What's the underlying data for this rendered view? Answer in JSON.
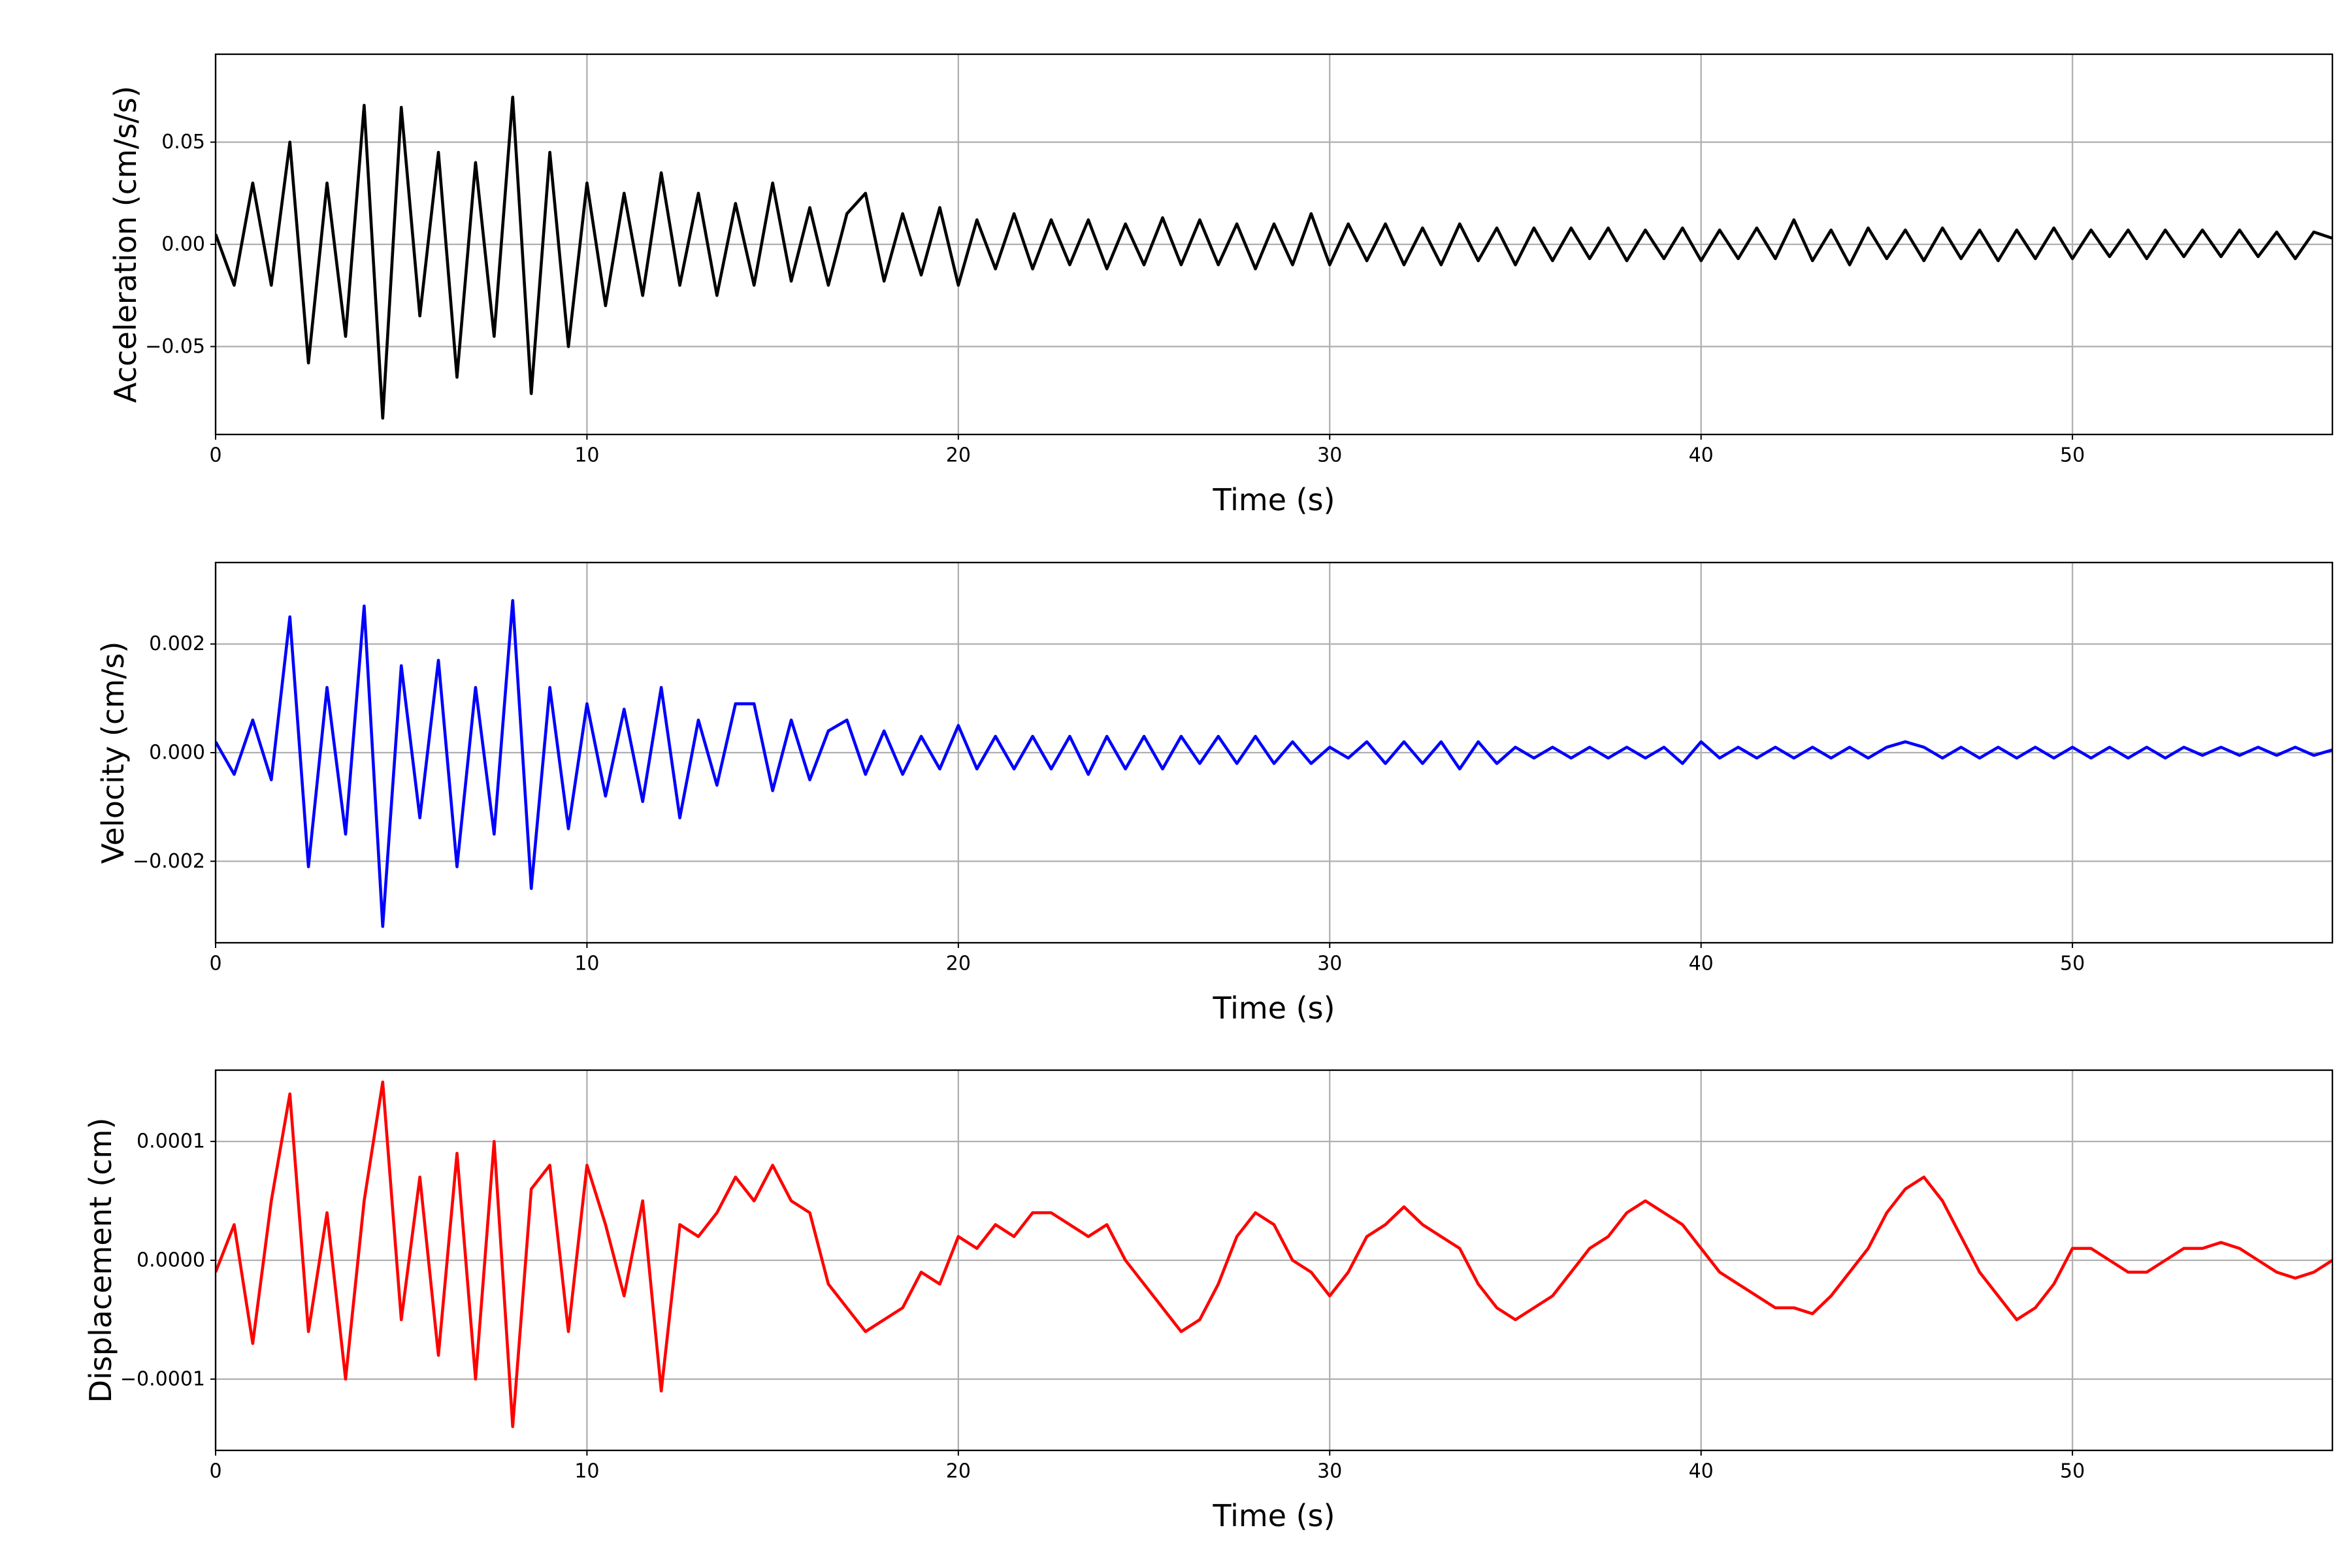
{
  "chart_data": [
    {
      "type": "line",
      "ylabel": "Acceleration (cm/s/s)",
      "xlabel": "Time (s)",
      "grid": true,
      "xlim": [
        0,
        57
      ],
      "xticks": [
        0,
        10,
        20,
        30,
        40,
        50
      ],
      "ylim": [
        -0.093,
        0.093
      ],
      "yticks": [
        {
          "value": -0.05,
          "label": "−0.05"
        },
        {
          "value": 0,
          "label": "0.00"
        },
        0.05
      ],
      "x": [
        0,
        0.5,
        1,
        1.5,
        2,
        2.5,
        3,
        3.5,
        4,
        4.5,
        5,
        5.5,
        6,
        6.5,
        7,
        7.5,
        8,
        8.5,
        9,
        9.5,
        10,
        10.5,
        11,
        11.5,
        12,
        12.5,
        13,
        13.5,
        14,
        14.5,
        15,
        15.5,
        16,
        16.5,
        17,
        17.5,
        18,
        18.5,
        19,
        19.5,
        20,
        20.5,
        21,
        21.5,
        22,
        22.5,
        23,
        23.5,
        24,
        24.5,
        25,
        25.5,
        26,
        26.5,
        27,
        27.5,
        28,
        28.5,
        29,
        29.5,
        30,
        30.5,
        31,
        31.5,
        32,
        32.5,
        33,
        33.5,
        34,
        34.5,
        35,
        35.5,
        36,
        36.5,
        37,
        37.5,
        38,
        38.5,
        39,
        39.5,
        40,
        40.5,
        41,
        41.5,
        42,
        42.5,
        43,
        43.5,
        44,
        44.5,
        45,
        45.5,
        46,
        46.5,
        47,
        47.5,
        48,
        48.5,
        49,
        49.5,
        50,
        50.5,
        51,
        51.5,
        52,
        52.5,
        53,
        53.5,
        54,
        54.5,
        55,
        55.5,
        56,
        56.5,
        57
      ],
      "series": [
        {
          "color": "#000000",
          "values": [
            0.005,
            -0.02,
            0.03,
            -0.02,
            0.05,
            -0.058,
            0.03,
            -0.045,
            0.068,
            -0.085,
            0.067,
            -0.035,
            0.045,
            -0.065,
            0.04,
            -0.045,
            0.072,
            -0.073,
            0.045,
            -0.05,
            0.03,
            -0.03,
            0.025,
            -0.025,
            0.035,
            -0.02,
            0.025,
            -0.025,
            0.02,
            -0.02,
            0.03,
            -0.018,
            0.018,
            -0.02,
            0.015,
            0.025,
            -0.018,
            0.015,
            -0.015,
            0.018,
            -0.02,
            0.012,
            -0.012,
            0.015,
            -0.012,
            0.012,
            -0.01,
            0.012,
            -0.012,
            0.01,
            -0.01,
            0.013,
            -0.01,
            0.012,
            -0.01,
            0.01,
            -0.012,
            0.01,
            -0.01,
            0.015,
            -0.01,
            0.01,
            -0.008,
            0.01,
            -0.01,
            0.008,
            -0.01,
            0.01,
            -0.008,
            0.008,
            -0.01,
            0.008,
            -0.008,
            0.008,
            -0.007,
            0.008,
            -0.008,
            0.007,
            -0.007,
            0.008,
            -0.008,
            0.007,
            -0.007,
            0.008,
            -0.007,
            0.012,
            -0.008,
            0.007,
            -0.01,
            0.008,
            -0.007,
            0.007,
            -0.008,
            0.008,
            -0.007,
            0.007,
            -0.008,
            0.007,
            -0.007,
            0.008,
            -0.007,
            0.007,
            -0.006,
            0.007,
            -0.007,
            0.007,
            -0.006,
            0.007,
            -0.006,
            0.007,
            -0.006,
            0.006,
            -0.007,
            0.006,
            0.003
          ]
        }
      ]
    },
    {
      "type": "line",
      "ylabel": "Velocity (cm/s)",
      "xlabel": "Time (s)",
      "grid": true,
      "xlim": [
        0,
        57
      ],
      "xticks": [
        0,
        10,
        20,
        30,
        40,
        50
      ],
      "ylim": [
        -0.0035,
        0.0035
      ],
      "yticks": [
        {
          "value": -0.002,
          "label": "−0.002"
        },
        {
          "value": 0,
          "label": "0.000"
        },
        0.002
      ],
      "x": [
        0,
        0.5,
        1,
        1.5,
        2,
        2.5,
        3,
        3.5,
        4,
        4.5,
        5,
        5.5,
        6,
        6.5,
        7,
        7.5,
        8,
        8.5,
        9,
        9.5,
        10,
        10.5,
        11,
        11.5,
        12,
        12.5,
        13,
        13.5,
        14,
        14.5,
        15,
        15.5,
        16,
        16.5,
        17,
        17.5,
        18,
        18.5,
        19,
        19.5,
        20,
        20.5,
        21,
        21.5,
        22,
        22.5,
        23,
        23.5,
        24,
        24.5,
        25,
        25.5,
        26,
        26.5,
        27,
        27.5,
        28,
        28.5,
        29,
        29.5,
        30,
        30.5,
        31,
        31.5,
        32,
        32.5,
        33,
        33.5,
        34,
        34.5,
        35,
        35.5,
        36,
        36.5,
        37,
        37.5,
        38,
        38.5,
        39,
        39.5,
        40,
        40.5,
        41,
        41.5,
        42,
        42.5,
        43,
        43.5,
        44,
        44.5,
        45,
        45.5,
        46,
        46.5,
        47,
        47.5,
        48,
        48.5,
        49,
        49.5,
        50,
        50.5,
        51,
        51.5,
        52,
        52.5,
        53,
        53.5,
        54,
        54.5,
        55,
        55.5,
        56,
        56.5,
        57
      ],
      "series": [
        {
          "color": "#0000ff",
          "values": [
            0.0002,
            -0.0004,
            0.0006,
            -0.0005,
            0.0025,
            -0.0021,
            0.0012,
            -0.0015,
            0.0027,
            -0.0032,
            0.0016,
            -0.0012,
            0.0017,
            -0.0021,
            0.0012,
            -0.0015,
            0.0028,
            -0.0025,
            0.0012,
            -0.0014,
            0.0009,
            -0.0008,
            0.0008,
            -0.0009,
            0.0012,
            -0.0012,
            0.0006,
            -0.0006,
            0.0009,
            0.0009,
            -0.0007,
            0.0006,
            -0.0005,
            0.0004,
            0.0006,
            -0.0004,
            0.0004,
            -0.0004,
            0.0003,
            -0.0003,
            0.0005,
            -0.0003,
            0.0003,
            -0.0003,
            0.0003,
            -0.0003,
            0.0003,
            -0.0004,
            0.0003,
            -0.0003,
            0.0003,
            -0.0003,
            0.0003,
            -0.0002,
            0.0003,
            -0.0002,
            0.0003,
            -0.0002,
            0.0002,
            -0.0002,
            0.0001,
            -0.0001,
            0.0002,
            -0.0002,
            0.0002,
            -0.0002,
            0.0002,
            -0.0003,
            0.0002,
            -0.0002,
            0.0001,
            -0.0001,
            0.0001,
            -0.0001,
            0.0001,
            -0.0001,
            0.0001,
            -0.0001,
            0.0001,
            -0.0002,
            0.0002,
            -0.0001,
            0.0001,
            -0.0001,
            0.0001,
            -0.0001,
            0.0001,
            -0.0001,
            0.0001,
            -0.0001,
            0.0001,
            0.0002,
            0.0001,
            -0.0001,
            0.0001,
            -0.0001,
            0.0001,
            -0.0001,
            0.0001,
            -0.0001,
            0.0001,
            -0.0001,
            0.0001,
            -0.0001,
            0.0001,
            -0.0001,
            0.0001,
            -5e-05,
            0.0001,
            -5e-05,
            0.0001,
            -5e-05,
            0.0001,
            -5e-05,
            5e-05
          ]
        }
      ]
    },
    {
      "type": "line",
      "ylabel": "Displacement (cm)",
      "xlabel": "Time (s)",
      "grid": true,
      "xlim": [
        0,
        57
      ],
      "xticks": [
        0,
        10,
        20,
        30,
        40,
        50
      ],
      "ylim": [
        -0.00016,
        0.00016
      ],
      "yticks": [
        {
          "value": -0.0001,
          "label": "−0.0001"
        },
        {
          "value": 0,
          "label": "0.0000"
        },
        0.0001
      ],
      "x": [
        0,
        0.5,
        1,
        1.5,
        2,
        2.5,
        3,
        3.5,
        4,
        4.5,
        5,
        5.5,
        6,
        6.5,
        7,
        7.5,
        8,
        8.5,
        9,
        9.5,
        10,
        10.5,
        11,
        11.5,
        12,
        12.5,
        13,
        13.5,
        14,
        14.5,
        15,
        15.5,
        16,
        16.5,
        17,
        17.5,
        18,
        18.5,
        19,
        19.5,
        20,
        20.5,
        21,
        21.5,
        22,
        22.5,
        23,
        23.5,
        24,
        24.5,
        25,
        25.5,
        26,
        26.5,
        27,
        27.5,
        28,
        28.5,
        29,
        29.5,
        30,
        30.5,
        31,
        31.5,
        32,
        32.5,
        33,
        33.5,
        34,
        34.5,
        35,
        35.5,
        36,
        36.5,
        37,
        37.5,
        38,
        38.5,
        39,
        39.5,
        40,
        40.5,
        41,
        41.5,
        42,
        42.5,
        43,
        43.5,
        44,
        44.5,
        45,
        45.5,
        46,
        46.5,
        47,
        47.5,
        48,
        48.5,
        49,
        49.5,
        50,
        50.5,
        51,
        51.5,
        52,
        52.5,
        53,
        53.5,
        54,
        54.5,
        55,
        55.5,
        56,
        56.5,
        57
      ],
      "series": [
        {
          "color": "#ff0000",
          "values": [
            -1e-05,
            3e-05,
            -7e-05,
            5e-05,
            0.00014,
            -6e-05,
            4e-05,
            -0.0001,
            5e-05,
            0.00015,
            -5e-05,
            7e-05,
            -8e-05,
            9e-05,
            -0.0001,
            0.0001,
            -0.00014,
            6e-05,
            8e-05,
            -6e-05,
            8e-05,
            3e-05,
            -3e-05,
            5e-05,
            -0.00011,
            3e-05,
            2e-05,
            4e-05,
            7e-05,
            5e-05,
            8e-05,
            5e-05,
            4e-05,
            -2e-05,
            -4e-05,
            -6e-05,
            -5e-05,
            -4e-05,
            -1e-05,
            -2e-05,
            2e-05,
            1e-05,
            3e-05,
            2e-05,
            4e-05,
            4e-05,
            3e-05,
            2e-05,
            3e-05,
            0,
            -2e-05,
            -4e-05,
            -6e-05,
            -5e-05,
            -2e-05,
            2e-05,
            4e-05,
            3e-05,
            0,
            -1e-05,
            -3e-05,
            -1e-05,
            2e-05,
            3e-05,
            4.5e-05,
            3e-05,
            2e-05,
            1e-05,
            -2e-05,
            -4e-05,
            -5e-05,
            -4e-05,
            -3e-05,
            -1e-05,
            1e-05,
            2e-05,
            4e-05,
            5e-05,
            4e-05,
            3e-05,
            1e-05,
            -1e-05,
            -2e-05,
            -3e-05,
            -4e-05,
            -4e-05,
            -4.5e-05,
            -3e-05,
            -1e-05,
            1e-05,
            4e-05,
            6e-05,
            7e-05,
            5e-05,
            2e-05,
            -1e-05,
            -3e-05,
            -5e-05,
            -4e-05,
            -2e-05,
            1e-05,
            1e-05,
            0,
            -1e-05,
            -1e-05,
            0,
            1e-05,
            1e-05,
            1.5e-05,
            1e-05,
            0,
            -1e-05,
            -1.5e-05,
            -1e-05,
            0
          ]
        }
      ]
    }
  ]
}
